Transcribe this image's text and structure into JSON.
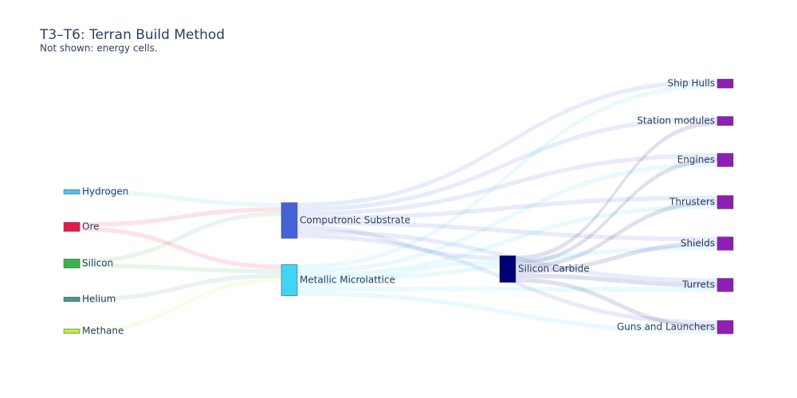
{
  "chart_data": {
    "type": "sankey",
    "title": "T3–T6: Terran Build Method",
    "subtitle": "Not shown: energy cells.",
    "nodes": [
      {
        "label": "Hydrogen",
        "color": "#4fc8e8"
      },
      {
        "label": "Ore",
        "color": "#e6194b"
      },
      {
        "label": "Silicon",
        "color": "#3cb44b"
      },
      {
        "label": "Helium",
        "color": "#469990"
      },
      {
        "label": "Methane",
        "color": "#bfef45"
      },
      {
        "label": "Computronic Substrate",
        "color": "#4363d8"
      },
      {
        "label": "Metallic Microlattice",
        "color": "#42d4f4"
      },
      {
        "label": "Silicon Carbide",
        "color": "#000075"
      },
      {
        "label": "Ship Hulls",
        "color": "#911eb4"
      },
      {
        "label": "Station modules",
        "color": "#911eb4"
      },
      {
        "label": "Engines",
        "color": "#911eb4"
      },
      {
        "label": "Thrusters",
        "color": "#911eb4"
      },
      {
        "label": "Shields",
        "color": "#911eb4"
      },
      {
        "label": "Turrets",
        "color": "#911eb4"
      },
      {
        "label": "Guns and Launchers",
        "color": "#911eb4"
      }
    ],
    "links": [
      {
        "source": 0,
        "target": 5,
        "value": 1
      },
      {
        "source": 1,
        "target": 5,
        "value": 1
      },
      {
        "source": 1,
        "target": 6,
        "value": 1
      },
      {
        "source": 2,
        "target": 5,
        "value": 1
      },
      {
        "source": 2,
        "target": 6,
        "value": 1
      },
      {
        "source": 3,
        "target": 6,
        "value": 1
      },
      {
        "source": 4,
        "target": 6,
        "value": 1
      },
      {
        "source": 5,
        "target": 8,
        "value": 1
      },
      {
        "source": 5,
        "target": 9,
        "value": 1
      },
      {
        "source": 5,
        "target": 10,
        "value": 1
      },
      {
        "source": 5,
        "target": 11,
        "value": 1
      },
      {
        "source": 5,
        "target": 12,
        "value": 1
      },
      {
        "source": 5,
        "target": 13,
        "value": 1
      },
      {
        "source": 5,
        "target": 14,
        "value": 1
      },
      {
        "source": 5,
        "target": 7,
        "value": 1
      },
      {
        "source": 6,
        "target": 8,
        "value": 1
      },
      {
        "source": 6,
        "target": 10,
        "value": 1
      },
      {
        "source": 6,
        "target": 11,
        "value": 1
      },
      {
        "source": 6,
        "target": 12,
        "value": 1
      },
      {
        "source": 6,
        "target": 13,
        "value": 1
      },
      {
        "source": 6,
        "target": 14,
        "value": 1
      },
      {
        "source": 6,
        "target": 7,
        "value": 1
      },
      {
        "source": 7,
        "target": 9,
        "value": 1
      },
      {
        "source": 7,
        "target": 10,
        "value": 1
      },
      {
        "source": 7,
        "target": 11,
        "value": 1
      },
      {
        "source": 7,
        "target": 12,
        "value": 1
      },
      {
        "source": 7,
        "target": 13,
        "value": 1
      },
      {
        "source": 7,
        "target": 14,
        "value": 1
      }
    ]
  }
}
